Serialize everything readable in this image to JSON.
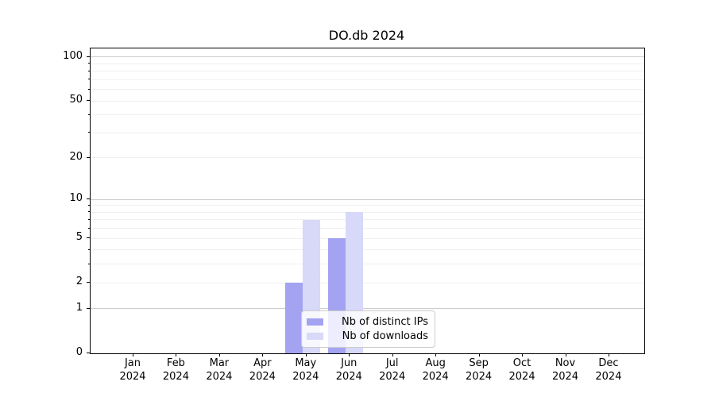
{
  "chart_data": {
    "type": "bar",
    "title": "DO.db 2024",
    "categories": [
      "Jan",
      "Feb",
      "Mar",
      "Apr",
      "May",
      "Jun",
      "Jul",
      "Aug",
      "Sep",
      "Oct",
      "Nov",
      "Dec"
    ],
    "x_tick_line2": "2024",
    "series": [
      {
        "name": "Nb of distinct IPs",
        "color": "#a3a3f2",
        "values": [
          0,
          0,
          0,
          0,
          2,
          5,
          0,
          0,
          0,
          0,
          0,
          0
        ]
      },
      {
        "name": "Nb of downloads",
        "color": "#d8d8f9",
        "values": [
          0,
          0,
          0,
          0,
          7,
          8,
          0,
          0,
          0,
          0,
          0,
          0
        ]
      }
    ],
    "yscale": "log1p",
    "yticks": [
      0,
      1,
      2,
      5,
      10,
      20,
      50,
      100
    ],
    "ylim": [
      0,
      115
    ],
    "xlabel": "",
    "ylabel": "",
    "grid": {
      "on": true,
      "major": [
        1,
        10,
        100
      ],
      "minor": [
        2,
        3,
        4,
        5,
        6,
        7,
        8,
        9,
        20,
        30,
        40,
        50,
        60,
        70,
        80,
        90
      ]
    },
    "legend": {
      "position": "lower center"
    },
    "colors": {
      "major_grid": "#cccccc",
      "minor_grid": "#f0f0f0",
      "axis": "#000000",
      "background": "#ffffff"
    }
  }
}
